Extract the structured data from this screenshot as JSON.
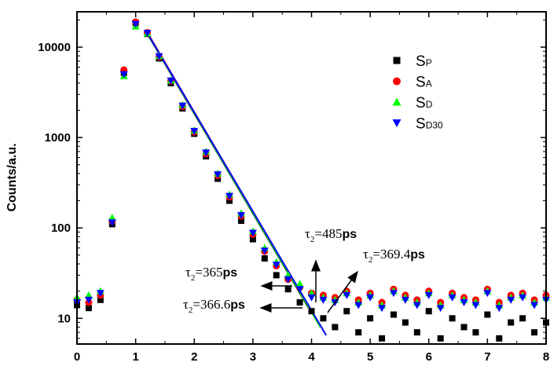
{
  "chart_data": {
    "type": "scatter",
    "title": "",
    "xlabel": "",
    "ylabel": "Counts/a.u.",
    "xlim": [
      0,
      8
    ],
    "ylim": [
      5.2,
      24600
    ],
    "yscale": "log",
    "xticks": [
      "0",
      "1",
      "2",
      "3",
      "4",
      "5",
      "6",
      "7",
      "8"
    ],
    "yticks": [
      "10",
      "100",
      "1000",
      "10000"
    ],
    "grid": false,
    "legend_position": "top-right",
    "x": [
      0,
      0.2,
      0.4,
      0.6,
      0.8,
      1.0,
      1.2,
      1.4,
      1.6,
      1.8,
      2.0,
      2.2,
      2.4,
      2.6,
      2.8,
      3.0,
      3.2,
      3.4,
      3.6,
      3.8,
      4.0,
      4.2,
      4.4,
      4.6,
      4.8,
      5.0,
      5.2,
      5.4,
      5.6,
      5.8,
      6.0,
      6.2,
      6.4,
      6.6,
      6.8,
      7.0,
      7.2,
      7.4,
      7.6,
      7.8,
      8.0
    ],
    "series": [
      {
        "name": "SP",
        "label_main": "S",
        "label_sub": "P",
        "color": "#000000",
        "marker": "square",
        "values": [
          14,
          13,
          16,
          110,
          5200,
          18500,
          14000,
          7500,
          4000,
          2100,
          1100,
          620,
          350,
          200,
          120,
          75,
          46,
          30,
          21,
          15,
          12,
          10,
          8,
          12,
          7,
          10,
          6,
          11,
          9,
          7,
          12,
          6,
          10,
          8,
          7,
          11,
          6,
          9,
          10,
          7,
          9
        ]
      },
      {
        "name": "SA",
        "label_main": "S",
        "label_sub": "A",
        "color": "#ff0000",
        "marker": "circle",
        "values": [
          16,
          15,
          18,
          120,
          5600,
          19000,
          14500,
          7800,
          4200,
          2200,
          1150,
          660,
          380,
          220,
          135,
          85,
          55,
          38,
          27,
          22,
          19,
          18,
          17,
          20,
          16,
          19,
          15,
          21,
          18,
          16,
          20,
          15,
          19,
          17,
          16,
          21,
          15,
          18,
          19,
          16,
          18
        ]
      },
      {
        "name": "SD",
        "label_main": "S",
        "label_sub": "D",
        "color": "#00ff00",
        "marker": "triangle-up",
        "values": [
          17,
          18,
          20,
          130,
          4800,
          17000,
          14200,
          8000,
          4300,
          2300,
          1200,
          700,
          400,
          235,
          145,
          92,
          60,
          42,
          30,
          24,
          19,
          17,
          16,
          19,
          15,
          18,
          14,
          20,
          17,
          15,
          19,
          14,
          18,
          16,
          15,
          20,
          14,
          17,
          18,
          15,
          17
        ]
      },
      {
        "name": "SD30",
        "label_main": "S",
        "label_sub": "D30",
        "color": "#0000ff",
        "marker": "triangle-down",
        "values": [
          15,
          16,
          19,
          115,
          5000,
          18000,
          14300,
          7900,
          4250,
          2250,
          1180,
          680,
          390,
          225,
          138,
          88,
          56,
          39,
          27,
          21,
          17,
          16,
          15,
          18,
          14,
          17,
          13,
          19,
          16,
          14,
          18,
          13,
          17,
          15,
          14,
          19,
          13,
          16,
          17,
          14,
          16
        ]
      }
    ],
    "fits": [
      {
        "color": "#000000",
        "x": [
          1.2,
          3.95
        ],
        "y": [
          14000,
          13
        ]
      },
      {
        "color": "#ff0000",
        "x": [
          1.2,
          3.97
        ],
        "y": [
          14500,
          13
        ]
      },
      {
        "color": "#00ff00",
        "x": [
          1.2,
          4.15
        ],
        "y": [
          14200,
          8
        ]
      },
      {
        "color": "#0000ff",
        "x": [
          1.2,
          4.25
        ],
        "y": [
          14300,
          6.5
        ]
      }
    ],
    "annotations": [
      {
        "greek": "τ",
        "sub": "2",
        "eq": "=",
        "value": "485",
        "unit": "ps"
      },
      {
        "greek": "τ",
        "sub": "2",
        "eq": "=",
        "value": "369.4",
        "unit": "ps"
      },
      {
        "greek": "τ",
        "sub": "2",
        "eq": "=",
        "value": "365",
        "unit": "ps"
      },
      {
        "greek": "τ",
        "sub": "2",
        "eq": "=",
        "value": "366.6",
        "unit": "ps"
      }
    ]
  }
}
